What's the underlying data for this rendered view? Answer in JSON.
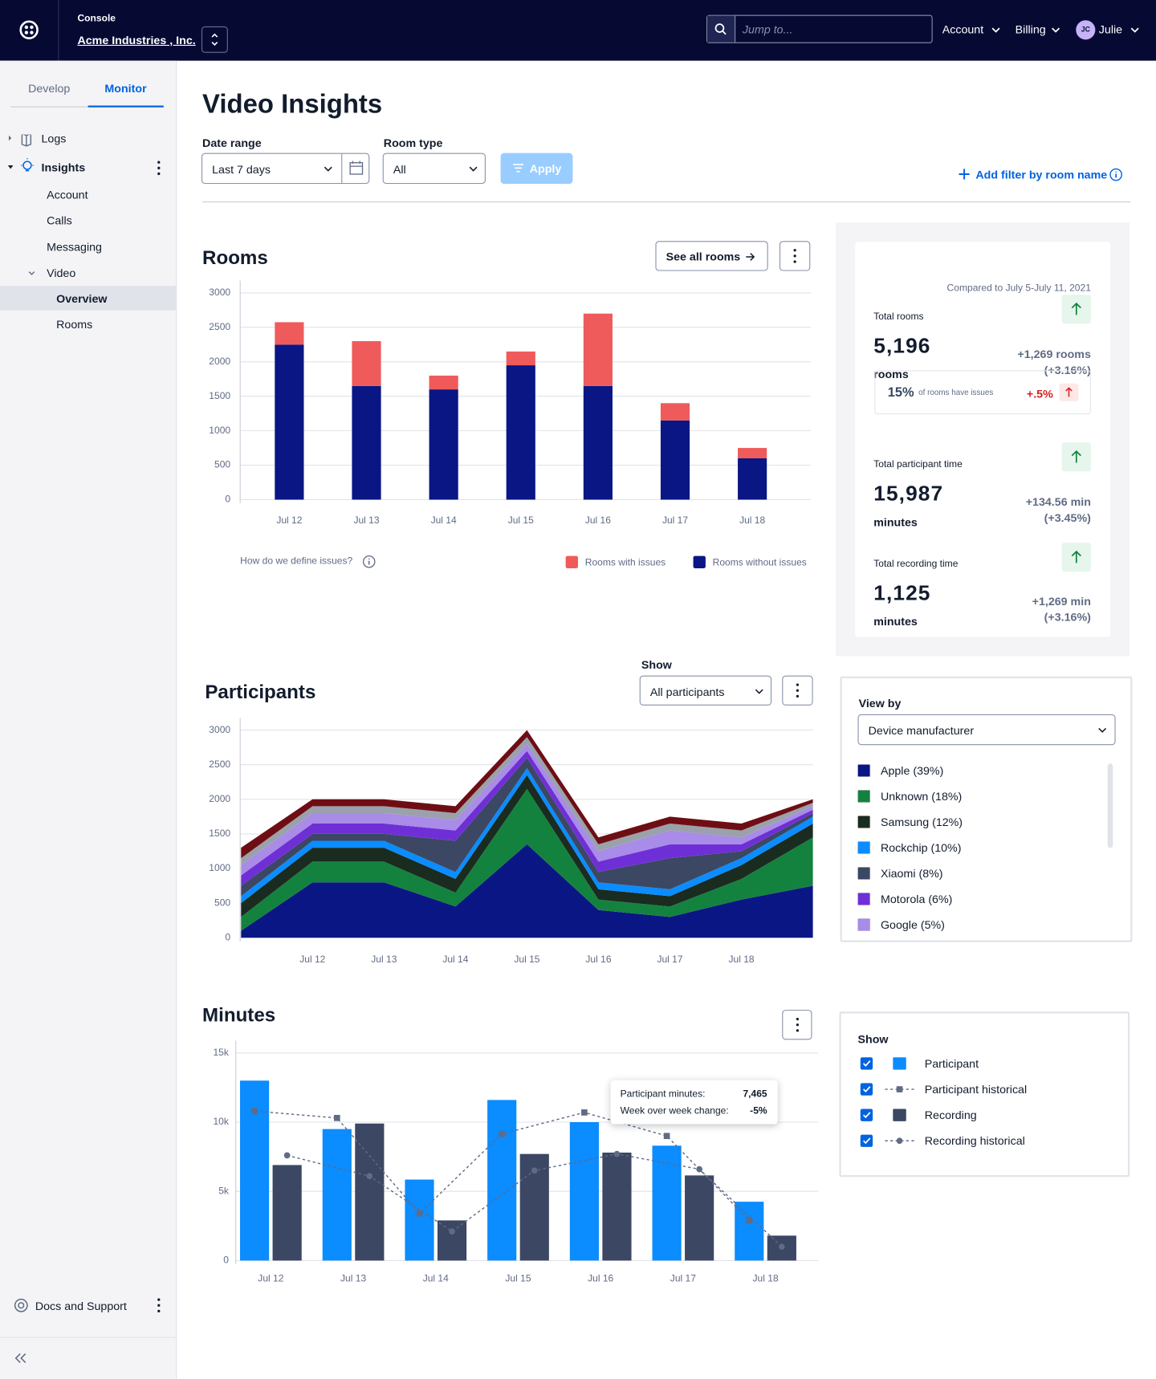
{
  "header": {
    "console": "Console",
    "org": "Acme Industries , Inc.",
    "search_placeholder": "Jump to...",
    "account": "Account",
    "billing": "Billing",
    "avatar": "JC",
    "user": "Julie"
  },
  "sidebar": {
    "tabs": [
      "Develop",
      "Monitor"
    ],
    "items": [
      "Logs",
      "Insights",
      "Account",
      "Calls",
      "Messaging",
      "Video",
      "Overview",
      "Rooms"
    ],
    "footer": "Docs and Support"
  },
  "page": {
    "title": "Video Insights",
    "date_range_label": "Date range",
    "date_range": "Last 7 days",
    "room_type_label": "Room type",
    "room_type": "All",
    "apply": "Apply",
    "add_filter": "Add filter by room name"
  },
  "rooms_panel": {
    "title": "Rooms",
    "see_all": "See all rooms",
    "define_issues": "How do we define issues?"
  },
  "stats": {
    "compared": "Compared to July 5-July 11, 2021",
    "cards": [
      {
        "label": "Total rooms",
        "value": "5,196",
        "unit": "rooms",
        "change": "+1,269 rooms",
        "pct": "(+3.16%)"
      },
      {
        "label": "Total participant time",
        "value": "15,987",
        "unit": "minutes",
        "change": "+134.56 min",
        "pct": "(+3.45%)"
      },
      {
        "label": "Total recording time",
        "value": "1,125",
        "unit": "minutes",
        "change": "+1,269 min",
        "pct": "(+3.16%)"
      }
    ],
    "issues": {
      "pct": "15%",
      "text": "of rooms have issues",
      "change": "+.5%"
    }
  },
  "participants_panel": {
    "title": "Participants",
    "show_label": "Show",
    "show_value": "All participants",
    "view_by_label": "View by",
    "view_by": "Device manufacturer"
  },
  "minutes_panel": {
    "title": "Minutes",
    "show_label": "Show",
    "tooltip": [
      [
        "Participant minutes:",
        "7,465"
      ],
      [
        "Week over week change:",
        "-5%"
      ]
    ]
  },
  "chart_data": [
    {
      "type": "bar",
      "stacked": true,
      "grid": true,
      "categories": [
        "Jul 12",
        "Jul 13",
        "Jul 14",
        "Jul 15",
        "Jul 16",
        "Jul 17",
        "Jul 18"
      ],
      "series": [
        {
          "name": "Rooms with issues",
          "color": "#ef5b5b",
          "values": [
            325,
            650,
            200,
            200,
            1050,
            250,
            150
          ]
        },
        {
          "name": "Rooms without issues",
          "color": "#0a1684",
          "values": [
            2250,
            1650,
            1600,
            1950,
            1650,
            1150,
            600
          ]
        }
      ],
      "ylim": [
        0,
        3000
      ],
      "yticks": [
        0,
        500,
        1000,
        1500,
        2000,
        2500,
        3000
      ]
    },
    {
      "type": "area",
      "stacked": true,
      "grid": true,
      "categories": [
        null,
        "Jul 12",
        "Jul 13",
        "Jul 14",
        "Jul 15",
        "Jul 16",
        "Jul 17",
        "Jul 18",
        null
      ],
      "series": [
        {
          "name": "Apple (39%)",
          "color": "#0a1684",
          "values": [
            100,
            800,
            800,
            450,
            1350,
            400,
            300,
            550,
            750
          ]
        },
        {
          "name": "Unknown (18%)",
          "color": "#14823f",
          "values": [
            200,
            300,
            300,
            200,
            800,
            150,
            150,
            300,
            700
          ]
        },
        {
          "name": "Samsung (12%)",
          "color": "#1a2b20",
          "values": [
            200,
            200,
            200,
            200,
            200,
            150,
            150,
            200,
            200
          ]
        },
        {
          "name": "Rockchip (10%)",
          "color": "#0b8cff",
          "values": [
            100,
            100,
            100,
            100,
            100,
            100,
            100,
            100,
            100
          ]
        },
        {
          "name": "Xiaomi (8%)",
          "color": "#3b4763",
          "values": [
            150,
            100,
            100,
            450,
            150,
            150,
            450,
            100,
            50
          ]
        },
        {
          "name": "Motorola (6%)",
          "color": "#6f2fd6",
          "values": [
            150,
            150,
            150,
            150,
            100,
            150,
            200,
            100,
            50
          ]
        },
        {
          "name": "Google (5%)",
          "color": "#a98be8",
          "values": [
            150,
            150,
            150,
            150,
            100,
            150,
            200,
            100,
            50
          ]
        },
        {
          "color": "#9ba1ab",
          "values": [
            100,
            100,
            100,
            100,
            100,
            100,
            100,
            100,
            50
          ]
        },
        {
          "color": "#6e0e14",
          "values": [
            150,
            100,
            100,
            100,
            100,
            100,
            100,
            100,
            50
          ]
        }
      ],
      "ylim": [
        0,
        3000
      ],
      "yticks": [
        0,
        500,
        1000,
        1500,
        2000,
        2500,
        3000
      ]
    },
    {
      "type": "bar",
      "grid": true,
      "categories": [
        "Jul 12",
        "Jul 13",
        "Jul 14",
        "Jul 15",
        "Jul 16",
        "Jul 17",
        "Jul 18"
      ],
      "series": [
        {
          "name": "Participant",
          "type": "bar",
          "color": "#0b8cff",
          "values": [
            13000,
            9500,
            5850,
            11600,
            10000,
            8300,
            4250
          ]
        },
        {
          "name": "Participant historical",
          "type": "line",
          "marker": "square",
          "dashed": true,
          "color": "#606b85",
          "values": [
            10800,
            10300,
            3400,
            9150,
            10700,
            9000,
            2900
          ]
        },
        {
          "name": "Recording",
          "type": "bar",
          "color": "#3b4763",
          "values": [
            6900,
            9900,
            2900,
            7700,
            7800,
            6150,
            1800
          ]
        },
        {
          "name": "Recording historical",
          "type": "line",
          "marker": "circle",
          "dashed": true,
          "color": "#606b85",
          "values": [
            7600,
            6100,
            2100,
            6500,
            7700,
            6600,
            1000
          ]
        }
      ],
      "ylim": [
        0,
        15000
      ],
      "yticks": [
        0,
        {
          "value": 5000,
          "label": "5k"
        },
        {
          "value": 10000,
          "label": "10k"
        },
        {
          "value": 15000,
          "label": "15k"
        }
      ]
    }
  ]
}
